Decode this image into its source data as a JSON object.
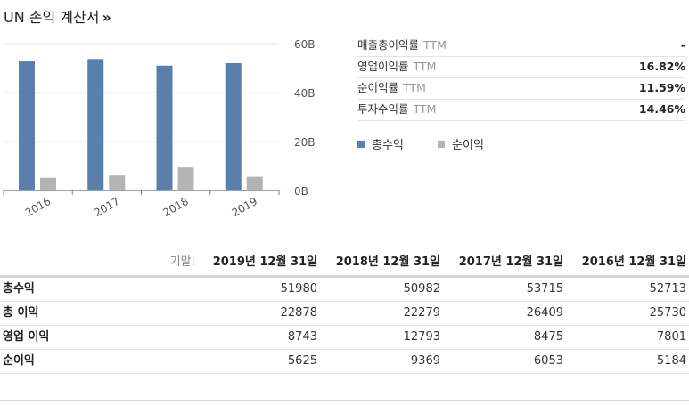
{
  "header": {
    "title": "UN 손익 계산서",
    "more_glyph": "»"
  },
  "chart_data": {
    "type": "bar",
    "categories": [
      "2016",
      "2017",
      "2018",
      "2019"
    ],
    "series": [
      {
        "name": "총수익",
        "color": "#5b7fab",
        "values": [
          52.7,
          53.7,
          51.0,
          52.0
        ]
      },
      {
        "name": "순이익",
        "color": "#b4b4b4",
        "values": [
          5.2,
          6.1,
          9.4,
          5.6
        ]
      }
    ],
    "y_ticks": [
      "60B",
      "40B",
      "20B",
      "0B"
    ],
    "y_tick_values": [
      60,
      40,
      20,
      0
    ],
    "ylim": [
      0,
      60
    ],
    "y_axis_side": "right",
    "grid": true
  },
  "metrics": [
    {
      "label": "매출총이익률",
      "ttm": "TTM",
      "value": "-"
    },
    {
      "label": "영업이익률",
      "ttm": "TTM",
      "value": "16.82%"
    },
    {
      "label": "순이익률",
      "ttm": "TTM",
      "value": "11.59%"
    },
    {
      "label": "투자수익률",
      "ttm": "TTM",
      "value": "14.46%"
    }
  ],
  "table": {
    "caption": "기말:",
    "columns": [
      "2019년 12월 31일",
      "2018년 12월 31일",
      "2017년 12월 31일",
      "2016년 12월 31일"
    ],
    "rows": [
      {
        "label": "총수익",
        "values": [
          "51980",
          "50982",
          "53715",
          "52713"
        ]
      },
      {
        "label": "총 이익",
        "values": [
          "22878",
          "22279",
          "26409",
          "25730"
        ]
      },
      {
        "label": "영업 이익",
        "values": [
          "8743",
          "12793",
          "8475",
          "7801"
        ]
      },
      {
        "label": "순이익",
        "values": [
          "5625",
          "9369",
          "6053",
          "5184"
        ]
      }
    ]
  }
}
